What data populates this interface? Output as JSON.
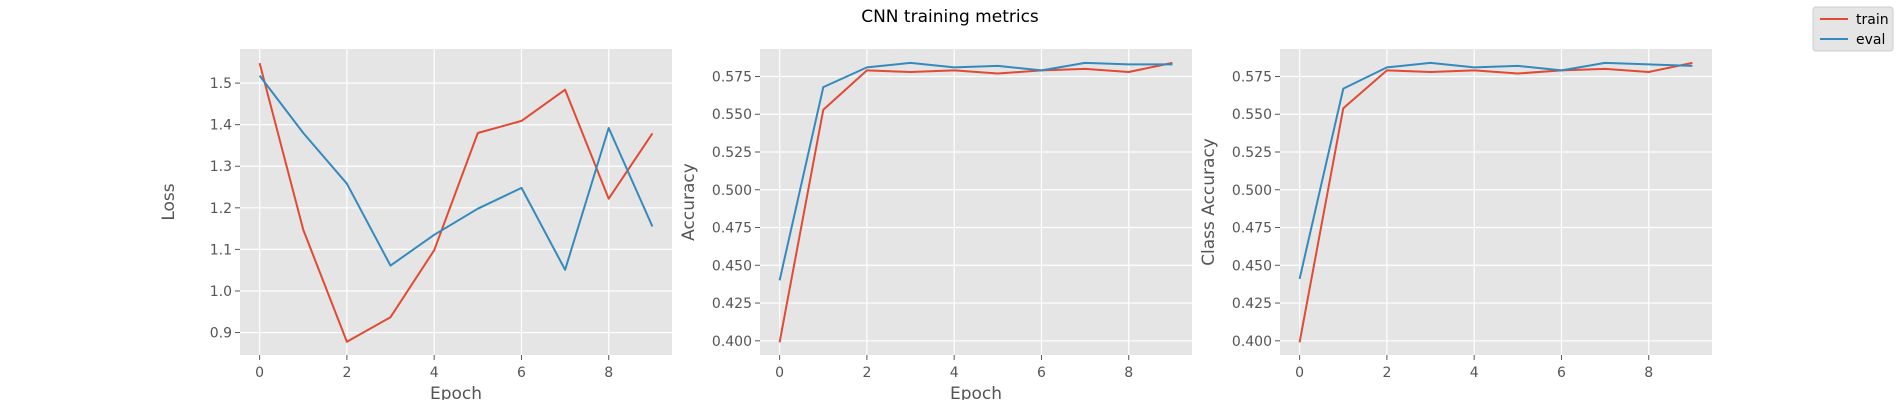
{
  "figure": {
    "title": "CNN training metrics"
  },
  "legend": {
    "placement": "top-right",
    "entries": [
      {
        "name": "train",
        "color": "#E24A33"
      },
      {
        "name": "eval",
        "color": "#348ABD"
      }
    ]
  },
  "style": {
    "axes_background": "#E5E5E5",
    "grid_color": "#FFFFFF",
    "tick_text_color": "#555555"
  },
  "chart_data": [
    {
      "type": "line",
      "title": "",
      "xlabel": "Epoch",
      "ylabel": "Loss",
      "grid": true,
      "x": [
        0,
        1,
        2,
        3,
        4,
        5,
        6,
        7,
        8,
        9
      ],
      "xlim": [
        -0.45,
        9.45
      ],
      "ylim": [
        0.846,
        1.582
      ],
      "xticks": [
        0,
        2,
        4,
        6,
        8
      ],
      "yticks": [
        0.9,
        1.0,
        1.1,
        1.2,
        1.3,
        1.4,
        1.5
      ],
      "ytick_labels": [
        "0.9",
        "1.0",
        "1.1",
        "1.2",
        "1.3",
        "1.4",
        "1.5"
      ],
      "series": [
        {
          "name": "train",
          "color": "#E24A33",
          "values": [
            1.548,
            1.147,
            0.878,
            0.937,
            1.098,
            1.38,
            1.409,
            1.484,
            1.222,
            1.379
          ]
        },
        {
          "name": "eval",
          "color": "#348ABD",
          "values": [
            1.518,
            1.38,
            1.258,
            1.061,
            1.135,
            1.198,
            1.248,
            1.051,
            1.392,
            1.155
          ]
        }
      ]
    },
    {
      "type": "line",
      "title": "",
      "xlabel": "Epoch",
      "ylabel": "Accuracy",
      "grid": true,
      "x": [
        0,
        1,
        2,
        3,
        4,
        5,
        6,
        7,
        8,
        9
      ],
      "xlim": [
        -0.45,
        9.45
      ],
      "ylim": [
        0.3906,
        0.5932
      ],
      "xticks": [
        0,
        2,
        4,
        6,
        8
      ],
      "yticks": [
        0.4,
        0.425,
        0.45,
        0.475,
        0.5,
        0.525,
        0.55,
        0.575
      ],
      "ytick_labels": [
        "0.400",
        "0.425",
        "0.450",
        "0.475",
        "0.500",
        "0.525",
        "0.550",
        "0.575"
      ],
      "series": [
        {
          "name": "train",
          "color": "#E24A33",
          "values": [
            0.399,
            0.553,
            0.579,
            0.578,
            0.579,
            0.577,
            0.579,
            0.58,
            0.578,
            0.584
          ]
        },
        {
          "name": "eval",
          "color": "#348ABD",
          "values": [
            0.44,
            0.568,
            0.581,
            0.584,
            0.581,
            0.582,
            0.579,
            0.584,
            0.583,
            0.583
          ]
        }
      ]
    },
    {
      "type": "line",
      "title": "",
      "xlabel": "",
      "ylabel": "Class Accuracy",
      "grid": true,
      "x": [
        0,
        1,
        2,
        3,
        4,
        5,
        6,
        7,
        8,
        9
      ],
      "xlim": [
        -0.45,
        9.45
      ],
      "ylim": [
        0.3906,
        0.5932
      ],
      "xticks": [
        0,
        2,
        4,
        6,
        8
      ],
      "yticks": [
        0.4,
        0.425,
        0.45,
        0.475,
        0.5,
        0.525,
        0.55,
        0.575
      ],
      "ytick_labels": [
        "0.400",
        "0.425",
        "0.450",
        "0.475",
        "0.500",
        "0.525",
        "0.550",
        "0.575"
      ],
      "series": [
        {
          "name": "train",
          "color": "#E24A33",
          "values": [
            0.399,
            0.554,
            0.579,
            0.578,
            0.579,
            0.577,
            0.579,
            0.58,
            0.578,
            0.584
          ]
        },
        {
          "name": "eval",
          "color": "#348ABD",
          "values": [
            0.441,
            0.567,
            0.581,
            0.584,
            0.581,
            0.582,
            0.579,
            0.584,
            0.583,
            0.582
          ]
        }
      ]
    }
  ]
}
